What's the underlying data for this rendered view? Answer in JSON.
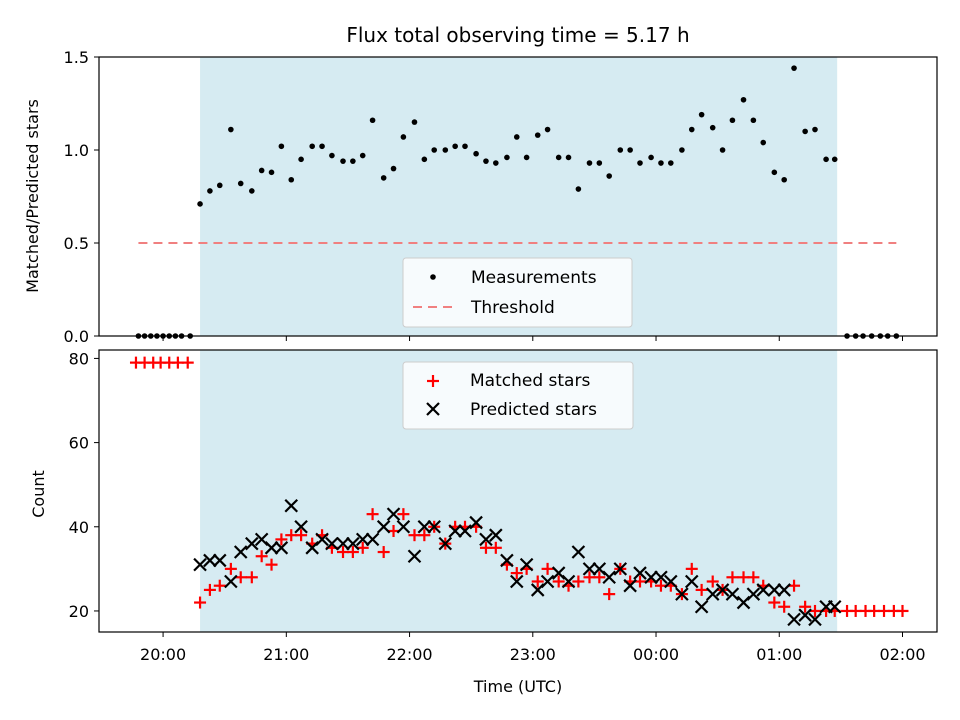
{
  "chart_data": {
    "type": "scatter",
    "title": "Flux total observing time = 5.17 h",
    "xlabel": "Time (UTC)",
    "x_unit": "hours since 20:00 UTC",
    "xlim": [
      -0.52,
      6.28
    ],
    "xticks": [
      {
        "t": 0,
        "label": "20:00"
      },
      {
        "t": 1,
        "label": "21:00"
      },
      {
        "t": 2,
        "label": "22:00"
      },
      {
        "t": 3,
        "label": "23:00"
      },
      {
        "t": 4,
        "label": "00:00"
      },
      {
        "t": 5,
        "label": "01:00"
      },
      {
        "t": 6,
        "label": "02:00"
      }
    ],
    "observing_window": {
      "start": 0.3,
      "end": 5.47,
      "color": "#add8e6"
    },
    "top_panel": {
      "ylabel": "Matched/Predicted stars",
      "ylim": [
        0,
        1.5
      ],
      "yticks": [
        "0.0",
        "0.5",
        "1.0",
        "1.5"
      ],
      "threshold": 0.5,
      "threshold_color": "#f08080",
      "legend": [
        "Measurements",
        "Threshold"
      ],
      "measurements": [
        [
          -0.2,
          0
        ],
        [
          -0.15,
          0
        ],
        [
          -0.1,
          0
        ],
        [
          -0.05,
          0
        ],
        [
          0.0,
          0
        ],
        [
          0.05,
          0
        ],
        [
          0.1,
          0
        ],
        [
          0.15,
          0
        ],
        [
          0.22,
          0
        ],
        [
          0.3,
          0.71
        ],
        [
          0.38,
          0.78
        ],
        [
          0.46,
          0.81
        ],
        [
          0.55,
          1.11
        ],
        [
          0.63,
          0.82
        ],
        [
          0.72,
          0.78
        ],
        [
          0.8,
          0.89
        ],
        [
          0.88,
          0.88
        ],
        [
          0.96,
          1.02
        ],
        [
          1.04,
          0.84
        ],
        [
          1.12,
          0.95
        ],
        [
          1.21,
          1.02
        ],
        [
          1.29,
          1.02
        ],
        [
          1.37,
          0.97
        ],
        [
          1.46,
          0.94
        ],
        [
          1.54,
          0.94
        ],
        [
          1.62,
          0.97
        ],
        [
          1.7,
          1.16
        ],
        [
          1.79,
          0.85
        ],
        [
          1.87,
          0.9
        ],
        [
          1.95,
          1.07
        ],
        [
          2.04,
          1.15
        ],
        [
          2.12,
          0.95
        ],
        [
          2.2,
          1.0
        ],
        [
          2.29,
          1.0
        ],
        [
          2.37,
          1.02
        ],
        [
          2.45,
          1.02
        ],
        [
          2.54,
          0.98
        ],
        [
          2.62,
          0.94
        ],
        [
          2.7,
          0.93
        ],
        [
          2.79,
          0.96
        ],
        [
          2.87,
          1.07
        ],
        [
          2.95,
          0.96
        ],
        [
          3.04,
          1.08
        ],
        [
          3.12,
          1.11
        ],
        [
          3.21,
          0.96
        ],
        [
          3.29,
          0.96
        ],
        [
          3.37,
          0.79
        ],
        [
          3.46,
          0.93
        ],
        [
          3.54,
          0.93
        ],
        [
          3.62,
          0.86
        ],
        [
          3.71,
          1.0
        ],
        [
          3.79,
          1.0
        ],
        [
          3.87,
          0.93
        ],
        [
          3.96,
          0.96
        ],
        [
          4.04,
          0.93
        ],
        [
          4.12,
          0.93
        ],
        [
          4.21,
          1.0
        ],
        [
          4.29,
          1.11
        ],
        [
          4.37,
          1.19
        ],
        [
          4.46,
          1.12
        ],
        [
          4.54,
          1.0
        ],
        [
          4.62,
          1.16
        ],
        [
          4.71,
          1.27
        ],
        [
          4.79,
          1.16
        ],
        [
          4.87,
          1.04
        ],
        [
          4.96,
          0.88
        ],
        [
          5.04,
          0.84
        ],
        [
          5.12,
          1.44
        ],
        [
          5.21,
          1.1
        ],
        [
          5.29,
          1.11
        ],
        [
          5.38,
          0.95
        ],
        [
          5.45,
          0.95
        ],
        [
          5.55,
          0
        ],
        [
          5.62,
          0
        ],
        [
          5.68,
          0
        ],
        [
          5.75,
          0
        ],
        [
          5.82,
          0
        ],
        [
          5.88,
          0
        ],
        [
          5.95,
          0
        ]
      ]
    },
    "bottom_panel": {
      "ylabel": "Count",
      "ylim": [
        15,
        82
      ],
      "yticks": [
        "20",
        "40",
        "60",
        "80"
      ],
      "series": [
        {
          "name": "Matched stars",
          "marker": "+",
          "color": "#ff0000",
          "points": [
            [
              -0.22,
              79
            ],
            [
              -0.15,
              79
            ],
            [
              -0.08,
              79
            ],
            [
              -0.02,
              79
            ],
            [
              0.05,
              79
            ],
            [
              0.12,
              79
            ],
            [
              0.2,
              79
            ],
            [
              0.3,
              22
            ],
            [
              0.38,
              25
            ],
            [
              0.46,
              26
            ],
            [
              0.55,
              30
            ],
            [
              0.63,
              28
            ],
            [
              0.72,
              28
            ],
            [
              0.8,
              33
            ],
            [
              0.88,
              31
            ],
            [
              0.96,
              37
            ],
            [
              1.04,
              38
            ],
            [
              1.12,
              38
            ],
            [
              1.21,
              36
            ],
            [
              1.29,
              38
            ],
            [
              1.37,
              35
            ],
            [
              1.46,
              34
            ],
            [
              1.54,
              34
            ],
            [
              1.62,
              35
            ],
            [
              1.7,
              43
            ],
            [
              1.79,
              34
            ],
            [
              1.87,
              39
            ],
            [
              1.95,
              43
            ],
            [
              2.04,
              38
            ],
            [
              2.12,
              38
            ],
            [
              2.2,
              40
            ],
            [
              2.29,
              36
            ],
            [
              2.37,
              40
            ],
            [
              2.45,
              40
            ],
            [
              2.54,
              40
            ],
            [
              2.62,
              35
            ],
            [
              2.7,
              35
            ],
            [
              2.79,
              31
            ],
            [
              2.87,
              29
            ],
            [
              2.95,
              30
            ],
            [
              3.04,
              27
            ],
            [
              3.12,
              30
            ],
            [
              3.21,
              27
            ],
            [
              3.29,
              26
            ],
            [
              3.37,
              27
            ],
            [
              3.46,
              28
            ],
            [
              3.54,
              28
            ],
            [
              3.62,
              24
            ],
            [
              3.71,
              30
            ],
            [
              3.79,
              27
            ],
            [
              3.87,
              27
            ],
            [
              3.96,
              27
            ],
            [
              4.04,
              26
            ],
            [
              4.12,
              26
            ],
            [
              4.21,
              24
            ],
            [
              4.29,
              30
            ],
            [
              4.37,
              25
            ],
            [
              4.46,
              27
            ],
            [
              4.54,
              25
            ],
            [
              4.62,
              28
            ],
            [
              4.71,
              28
            ],
            [
              4.79,
              28
            ],
            [
              4.87,
              26
            ],
            [
              4.96,
              22
            ],
            [
              5.04,
              21
            ],
            [
              5.12,
              26
            ],
            [
              5.21,
              21
            ],
            [
              5.29,
              20
            ],
            [
              5.38,
              20
            ],
            [
              5.45,
              20
            ],
            [
              5.55,
              20
            ],
            [
              5.62,
              20
            ],
            [
              5.7,
              20
            ],
            [
              5.77,
              20
            ],
            [
              5.85,
              20
            ],
            [
              5.93,
              20
            ],
            [
              6.0,
              20
            ]
          ]
        },
        {
          "name": "Predicted stars",
          "marker": "x",
          "color": "#000000",
          "points": [
            [
              0.3,
              31
            ],
            [
              0.38,
              32
            ],
            [
              0.46,
              32
            ],
            [
              0.55,
              27
            ],
            [
              0.63,
              34
            ],
            [
              0.72,
              36
            ],
            [
              0.8,
              37
            ],
            [
              0.88,
              35
            ],
            [
              0.96,
              35
            ],
            [
              1.04,
              45
            ],
            [
              1.12,
              40
            ],
            [
              1.21,
              35
            ],
            [
              1.29,
              37
            ],
            [
              1.37,
              36
            ],
            [
              1.46,
              36
            ],
            [
              1.54,
              36
            ],
            [
              1.62,
              37
            ],
            [
              1.7,
              37
            ],
            [
              1.79,
              40
            ],
            [
              1.87,
              43
            ],
            [
              1.95,
              40
            ],
            [
              2.04,
              33
            ],
            [
              2.12,
              40
            ],
            [
              2.2,
              40
            ],
            [
              2.29,
              36
            ],
            [
              2.37,
              39
            ],
            [
              2.45,
              39
            ],
            [
              2.54,
              41
            ],
            [
              2.62,
              37
            ],
            [
              2.7,
              38
            ],
            [
              2.79,
              32
            ],
            [
              2.87,
              27
            ],
            [
              2.95,
              31
            ],
            [
              3.04,
              25
            ],
            [
              3.12,
              27
            ],
            [
              3.21,
              29
            ],
            [
              3.29,
              27
            ],
            [
              3.37,
              34
            ],
            [
              3.46,
              30
            ],
            [
              3.54,
              30
            ],
            [
              3.62,
              28
            ],
            [
              3.71,
              30
            ],
            [
              3.79,
              26
            ],
            [
              3.87,
              29
            ],
            [
              3.96,
              28
            ],
            [
              4.04,
              28
            ],
            [
              4.12,
              27
            ],
            [
              4.21,
              24
            ],
            [
              4.29,
              27
            ],
            [
              4.37,
              21
            ],
            [
              4.46,
              24
            ],
            [
              4.54,
              25
            ],
            [
              4.62,
              24
            ],
            [
              4.71,
              22
            ],
            [
              4.79,
              24
            ],
            [
              4.87,
              25
            ],
            [
              4.96,
              25
            ],
            [
              5.04,
              25
            ],
            [
              5.12,
              18
            ],
            [
              5.21,
              19
            ],
            [
              5.29,
              18
            ],
            [
              5.38,
              21
            ],
            [
              5.45,
              21
            ]
          ]
        }
      ]
    }
  }
}
